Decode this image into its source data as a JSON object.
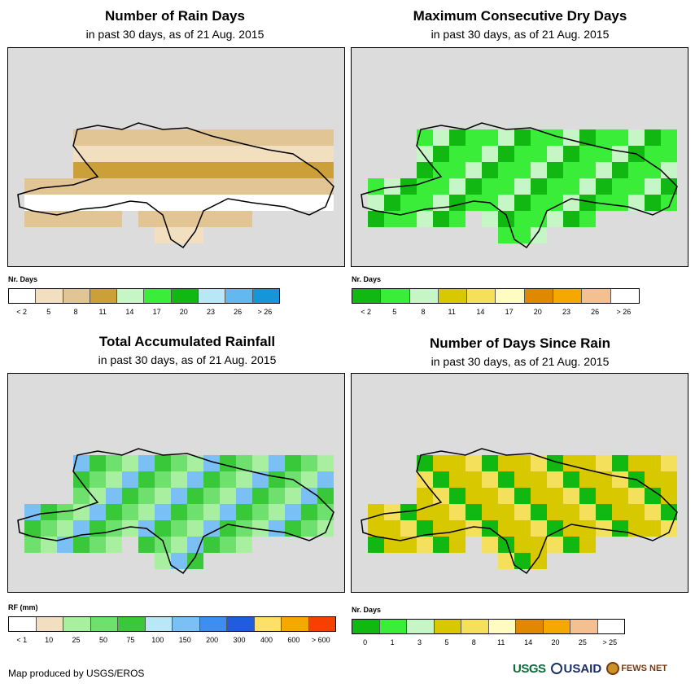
{
  "panels": [
    {
      "id": "rain-days",
      "title": "Number of Rain Days",
      "subtitle": "in past 30 days, as of 21 Aug. 2015",
      "legend_title": "Nr. Days",
      "legend_colors": [
        "#ffffff",
        "#f2dfc0",
        "#e2c594",
        "#cca038",
        "#c6f5c6",
        "#39ed39",
        "#12b812",
        "#b8e8f5",
        "#63b8f0",
        "#1696d8"
      ],
      "legend_labels": [
        "< 2",
        "5",
        "8",
        "11",
        "14",
        "17",
        "20",
        "23",
        "26",
        "> 26"
      ]
    },
    {
      "id": "max-dry-days",
      "title": "Maximum Consecutive Dry Days",
      "subtitle": "in past 30 days, as of 21 Aug. 2015",
      "legend_title": "Nr. Days",
      "legend_colors": [
        "#12b812",
        "#39ed39",
        "#c6f5c6",
        "#d8c800",
        "#f5e05c",
        "#fffcc2",
        "#e08800",
        "#f5a800",
        "#f5c090",
        "#ffffff"
      ],
      "legend_labels": [
        "< 2",
        "5",
        "8",
        "11",
        "14",
        "17",
        "20",
        "23",
        "26",
        "> 26"
      ]
    },
    {
      "id": "total-rainfall",
      "title": "Total Accumulated Rainfall",
      "subtitle": "in past 30 days, as of 21 Aug. 2015",
      "legend_title": "RF (mm)",
      "legend_colors": [
        "#ffffff",
        "#f2dfc0",
        "#a8f0a0",
        "#6ee06e",
        "#39c839",
        "#b8e8f5",
        "#7ac0f5",
        "#3c8ef0",
        "#1f5ce0",
        "#ffe066",
        "#f5a800",
        "#f54000"
      ],
      "legend_labels": [
        "< 1",
        "10",
        "25",
        "50",
        "75",
        "100",
        "150",
        "200",
        "300",
        "400",
        "600",
        "> 600"
      ]
    },
    {
      "id": "days-since-rain",
      "title": "Number of Days Since Rain",
      "subtitle": "in past 30 days, as of 21 Aug. 2015",
      "legend_title": "Nr. Days",
      "legend_colors": [
        "#12b812",
        "#39ed39",
        "#c6f5c6",
        "#d8c800",
        "#f5e05c",
        "#fffcc2",
        "#e08800",
        "#f5a800",
        "#f5c090",
        "#ffffff"
      ],
      "legend_labels": [
        "0",
        "1",
        "3",
        "5",
        "8",
        "11",
        "14",
        "20",
        "25",
        "> 25"
      ]
    }
  ],
  "footer": {
    "credit": "Map produced by USGS/EROS",
    "logo_usgs": "USGS",
    "logo_usaid": "USAID",
    "logo_fews": "FEWS NET"
  },
  "colors": {
    "map_background": "#dcdcdc",
    "coastline": "#000000"
  }
}
